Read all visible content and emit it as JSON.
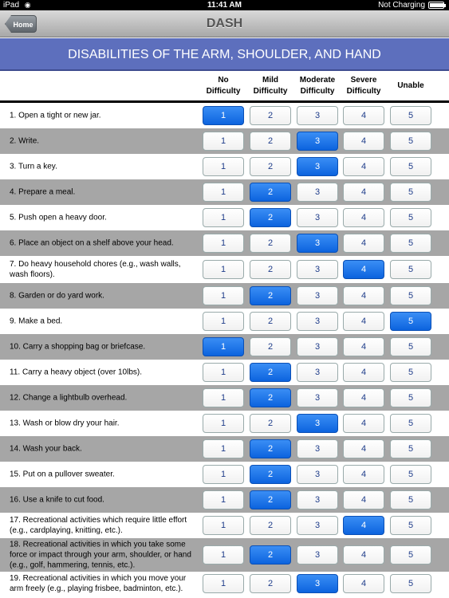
{
  "status_bar": {
    "device": "iPad",
    "time": "11:41 AM",
    "charging": "Not Charging",
    "battery_level": 0.95
  },
  "nav": {
    "back_label": "Home",
    "title": "DASH"
  },
  "banner": "DISABILITIES OF THE ARM, SHOULDER, AND HAND",
  "columns": [
    {
      "line1": "No",
      "line2": "Difficulty"
    },
    {
      "line1": "Mild",
      "line2": "Difficulty"
    },
    {
      "line1": "Moderate",
      "line2": "Difficulty"
    },
    {
      "line1": "Severe",
      "line2": "Difficulty"
    },
    {
      "line1": "Unable",
      "line2": ""
    }
  ],
  "options": [
    "1",
    "2",
    "3",
    "4",
    "5"
  ],
  "questions": [
    {
      "text": "1.  Open a tight or new jar.",
      "selected": 1
    },
    {
      "text": "2.  Write.",
      "selected": 3
    },
    {
      "text": "3.  Turn a key.",
      "selected": 3
    },
    {
      "text": "4.  Prepare a meal.",
      "selected": 2
    },
    {
      "text": "5.  Push open a heavy door.",
      "selected": 2
    },
    {
      "text": "6.  Place an object on a shelf above your head.",
      "selected": 3
    },
    {
      "text": "7.  Do heavy household chores (e.g., wash walls, wash floors).",
      "selected": 4
    },
    {
      "text": "8.  Garden or do yard work.",
      "selected": 2
    },
    {
      "text": "9.  Make a bed.",
      "selected": 5
    },
    {
      "text": "10.  Carry a shopping bag or briefcase.",
      "selected": 1
    },
    {
      "text": "11.  Carry a heavy object (over 10lbs).",
      "selected": 2
    },
    {
      "text": "12.  Change a lightbulb overhead.",
      "selected": 2
    },
    {
      "text": "13.  Wash or blow dry your hair.",
      "selected": 3
    },
    {
      "text": "14.  Wash your back.",
      "selected": 2
    },
    {
      "text": "15.  Put on a pullover sweater.",
      "selected": 2
    },
    {
      "text": "16.  Use a knife to cut food.",
      "selected": 2
    },
    {
      "text": "17.  Recreational activities which require little effort (e.g.,  cardplaying, knitting, etc.).",
      "selected": 4
    },
    {
      "text": "18.  Recreational activities in which you take some force or impact through your arm, shoulder, or hand (e.g., golf, hammering, tennis, etc.).",
      "selected": 2
    },
    {
      "text": "19.  Recreational activities in which you move your arm freely (e.g., playing frisbee, badminton, etc.).",
      "selected": 3
    }
  ]
}
